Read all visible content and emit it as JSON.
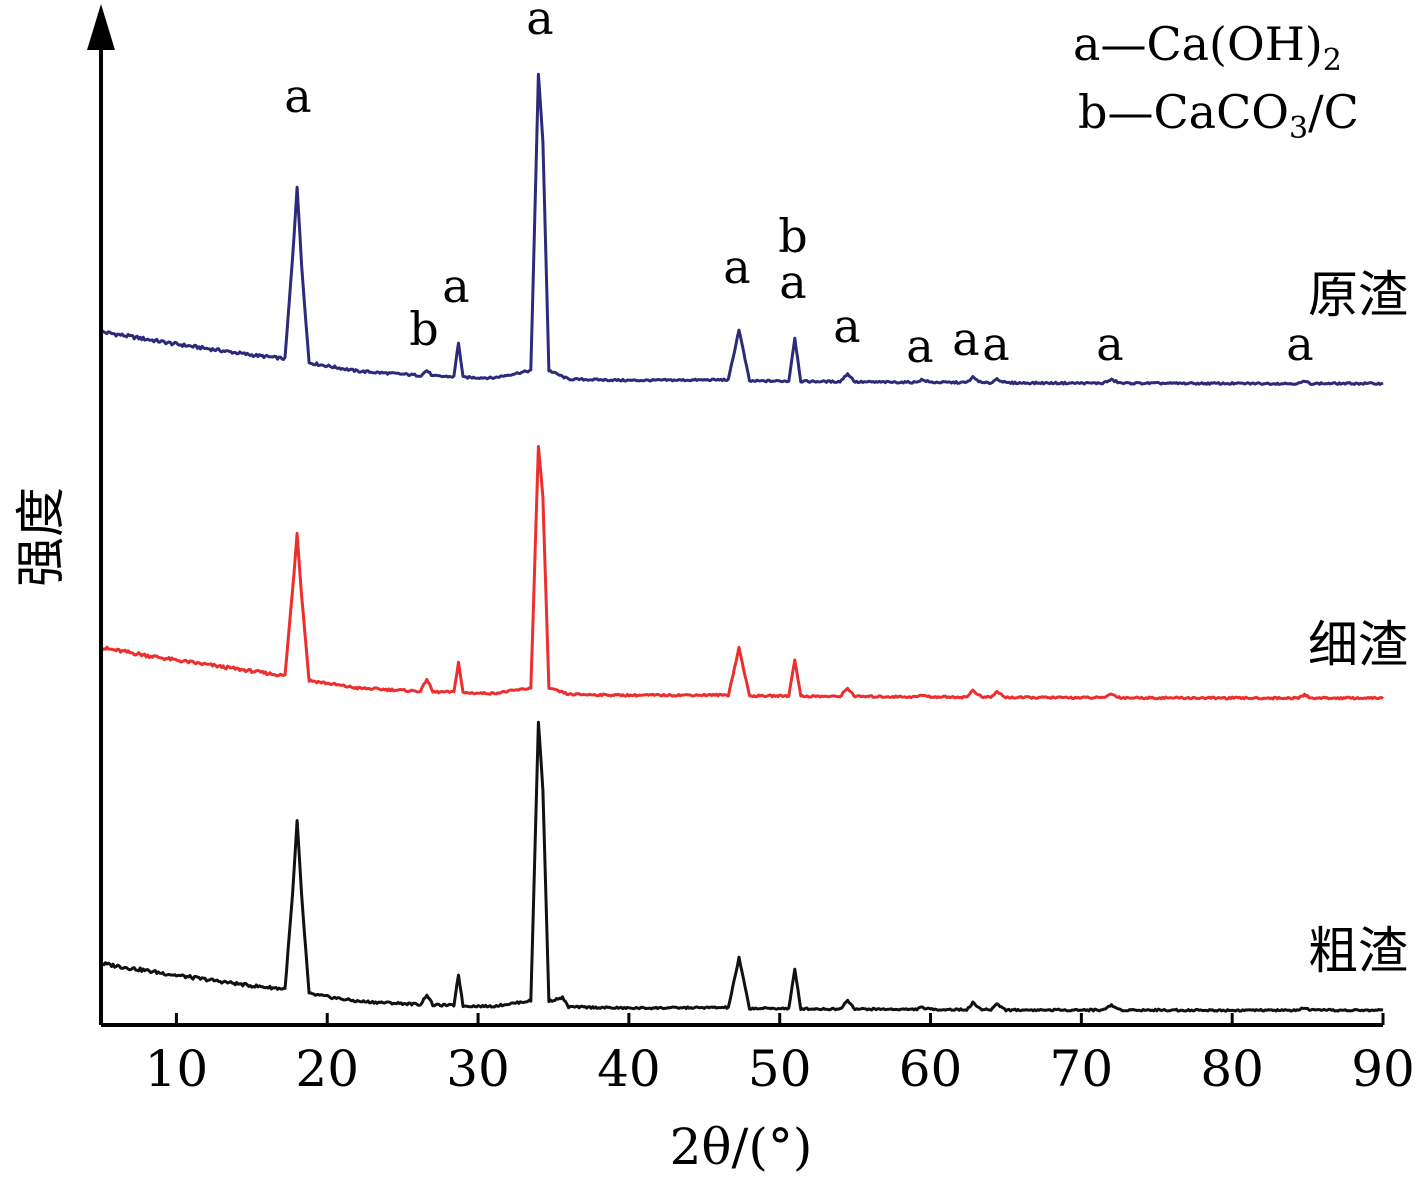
{
  "chart_data": {
    "type": "line",
    "xlabel": "2θ/(°)",
    "ylabel": "强度",
    "xlim": [
      5,
      90
    ],
    "xticks": [
      10,
      20,
      30,
      40,
      50,
      60,
      70,
      80,
      90
    ],
    "y_units": "arbitrary",
    "legend": {
      "placement": "top-right",
      "entries": [
        {
          "marker": "a",
          "text": "—Ca(OH)",
          "subscript": "2"
        },
        {
          "marker": "b",
          "text": "—CaCO",
          "subscript": "3",
          "suffix": "/C"
        }
      ]
    },
    "series": [
      {
        "name": "原渣",
        "color": "#2e2a7a",
        "x": [
          5,
          10,
          15,
          17.2,
          17.7,
          18.0,
          18.3,
          18.8,
          22,
          26.2,
          26.6,
          27,
          28.4,
          28.7,
          29.0,
          31,
          33.5,
          34.0,
          34.3,
          34.7,
          36,
          40,
          46.6,
          47.3,
          48.0,
          50.6,
          51.0,
          51.4,
          54.0,
          54.5,
          55.0,
          59.0,
          59.4,
          60.0,
          62.4,
          62.8,
          63.4,
          64.0,
          64.4,
          65.0,
          71.4,
          72.0,
          72.6,
          80,
          84.4,
          84.8,
          85.2,
          90
        ],
        "y": [
          2.45,
          2.05,
          1.7,
          1.58,
          4.8,
          7.15,
          4.6,
          1.45,
          1.18,
          1.04,
          1.2,
          1.02,
          1.0,
          2.1,
          0.98,
          0.96,
          1.2,
          10.75,
          8.6,
          1.2,
          0.92,
          0.88,
          0.9,
          2.52,
          0.86,
          0.86,
          2.25,
          0.85,
          0.84,
          1.1,
          0.83,
          0.82,
          0.9,
          0.82,
          0.81,
          0.98,
          0.8,
          0.8,
          0.93,
          0.8,
          0.79,
          0.9,
          0.79,
          0.78,
          0.78,
          0.85,
          0.78,
          0.78
        ]
      },
      {
        "name": "细渣",
        "color": "#ee2e2e",
        "x": [
          5,
          10,
          15,
          17.2,
          17.7,
          18.0,
          18.3,
          18.8,
          22,
          26.2,
          26.6,
          27,
          28.4,
          28.7,
          29.0,
          31,
          33.5,
          34.0,
          34.3,
          34.7,
          36,
          40,
          46.6,
          47.3,
          48.0,
          50.6,
          51.0,
          51.4,
          54.0,
          54.5,
          55.0,
          59.0,
          59.4,
          60.0,
          62.4,
          62.8,
          63.4,
          64.0,
          64.4,
          65.0,
          71.4,
          72.0,
          72.6,
          80,
          84.4,
          84.8,
          85.2,
          90
        ],
        "y": [
          2.35,
          1.95,
          1.6,
          1.45,
          4.2,
          6.05,
          4.05,
          1.3,
          1.05,
          0.95,
          1.35,
          0.93,
          0.92,
          1.88,
          0.9,
          0.88,
          1.05,
          8.85,
          7.2,
          1.05,
          0.85,
          0.82,
          0.83,
          2.35,
          0.8,
          0.8,
          1.98,
          0.79,
          0.78,
          1.05,
          0.78,
          0.77,
          0.82,
          0.77,
          0.76,
          0.98,
          0.76,
          0.76,
          0.93,
          0.75,
          0.74,
          0.86,
          0.74,
          0.73,
          0.73,
          0.84,
          0.73,
          0.73
        ]
      },
      {
        "name": "粗渣",
        "color": "#111111",
        "x": [
          5,
          10,
          15,
          17.2,
          17.7,
          18.0,
          18.3,
          18.8,
          22,
          26.2,
          26.6,
          27,
          28.4,
          28.7,
          29.0,
          31,
          33.5,
          34.0,
          34.3,
          34.7,
          35.6,
          36,
          40,
          46.6,
          47.3,
          48.0,
          50.6,
          51.0,
          51.4,
          54.0,
          54.5,
          55.0,
          59.0,
          59.4,
          60.0,
          62.4,
          62.8,
          63.4,
          64.0,
          64.4,
          65.0,
          71.4,
          72.0,
          72.6,
          80,
          84.4,
          84.8,
          85.2,
          90
        ],
        "y": [
          2.2,
          1.82,
          1.48,
          1.38,
          4.4,
          6.8,
          4.4,
          1.22,
          0.98,
          0.88,
          1.2,
          0.86,
          0.85,
          1.85,
          0.83,
          0.82,
          1.0,
          10.0,
          7.8,
          0.98,
          1.1,
          0.8,
          0.76,
          0.78,
          2.38,
          0.75,
          0.75,
          2.0,
          0.74,
          0.73,
          1.02,
          0.73,
          0.72,
          0.78,
          0.72,
          0.71,
          0.93,
          0.71,
          0.71,
          0.9,
          0.7,
          0.7,
          0.85,
          0.7,
          0.69,
          0.69,
          0.78,
          0.69,
          0.69
        ]
      }
    ],
    "peak_annotations": [
      {
        "x": 18.0,
        "labels": [
          "a"
        ]
      },
      {
        "x": 26.4,
        "labels": [
          "b"
        ]
      },
      {
        "x": 28.7,
        "labels": [
          "a"
        ]
      },
      {
        "x": 34.1,
        "labels": [
          "a"
        ]
      },
      {
        "x": 47.3,
        "labels": [
          "a"
        ]
      },
      {
        "x": 51.0,
        "labels": [
          "b",
          "a"
        ]
      },
      {
        "x": 54.5,
        "labels": [
          "a"
        ]
      },
      {
        "x": 59.4,
        "labels": [
          "a"
        ]
      },
      {
        "x": 62.6,
        "labels": [
          "a"
        ]
      },
      {
        "x": 64.4,
        "labels": [
          "a"
        ]
      },
      {
        "x": 72.0,
        "labels": [
          "a"
        ]
      },
      {
        "x": 85.0,
        "labels": [
          "a"
        ]
      }
    ]
  }
}
